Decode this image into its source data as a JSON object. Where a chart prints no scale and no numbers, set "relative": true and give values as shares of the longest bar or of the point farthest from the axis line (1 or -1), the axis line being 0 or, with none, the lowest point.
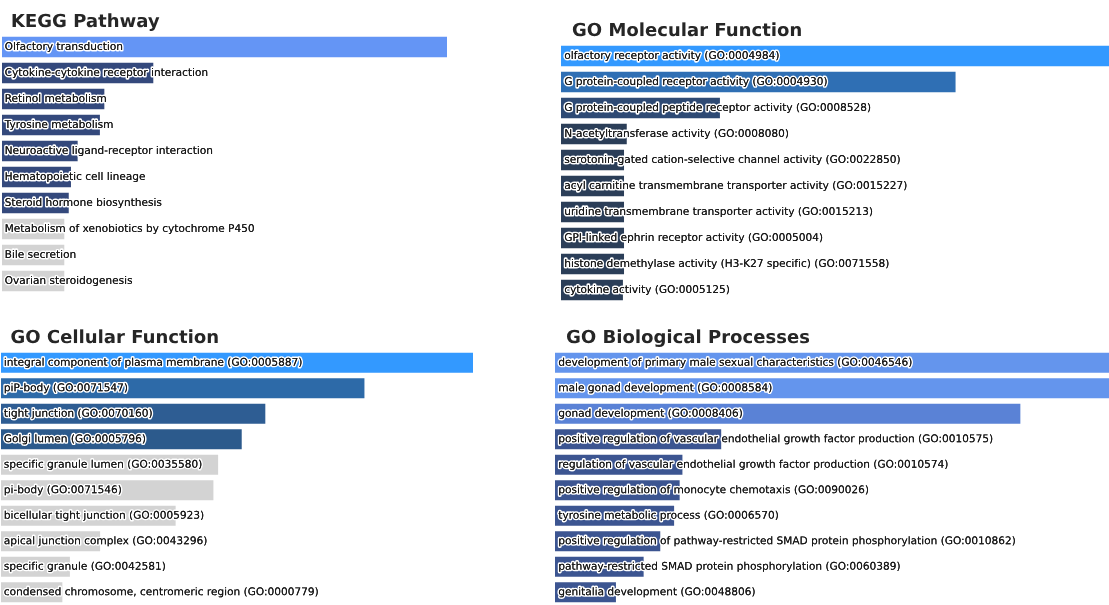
{
  "chart_data": [
    {
      "type": "bar",
      "orientation": "horizontal",
      "relative": true,
      "title": "KEGG Pathway",
      "categories": [
        "Olfactory transduction",
        "Cytokine-cytokine receptor interaction",
        "Retinol metabolism",
        "Tyrosine metabolism",
        "Neuroactive ligand-receptor interaction",
        "Hematopoietic cell lineage",
        "Steroid hormone biosynthesis",
        "Metabolism of xenobiotics by cytochrome P450",
        "Bile secretion",
        "Ovarian steroidogenesis"
      ],
      "values": [
        1,
        0.34,
        0.23,
        0.22,
        0.17,
        0.155,
        0.15,
        0.14,
        0.14,
        0.14
      ],
      "colors": [
        "#6495f5",
        "#34497c",
        "#34497c",
        "#34497c",
        "#34497c",
        "#34497c",
        "#34497c",
        "#d3d3d3",
        "#d3d3d3",
        "#d3d3d3"
      ]
    },
    {
      "type": "bar",
      "orientation": "horizontal",
      "relative": true,
      "title": "GO Molecular Function",
      "categories": [
        "olfactory receptor activity (GO:0004984)",
        "G protein-coupled receptor activity (GO:0004930)",
        "G protein-coupled peptide receptor activity (GO:0008528)",
        "N-acetyltransferase activity (GO:0008080)",
        "serotonin-gated cation-selective channel activity (GO:0022850)",
        "acyl carnitine transmembrane transporter activity (GO:0015227)",
        "uridine transmembrane transporter activity (GO:0015213)",
        "GPI-linked ephrin receptor activity (GO:0005004)",
        "histone demethylase activity (H3-K27 specific) (GO:0071558)",
        "cytokine activity (GO:0005125)"
      ],
      "values": [
        1,
        0.72,
        0.29,
        0.12,
        0.115,
        0.115,
        0.115,
        0.115,
        0.115,
        0.113
      ],
      "colors": [
        "#3399ff",
        "#2f6fb4",
        "#2e4a74",
        "#2b3e58",
        "#2b3e58",
        "#2b3e58",
        "#2b3e58",
        "#2b3e58",
        "#2b3e58",
        "#2b3e58"
      ]
    },
    {
      "type": "bar",
      "orientation": "horizontal",
      "relative": true,
      "title": "GO Cellular Function",
      "categories": [
        "integral component of plasma membrane (GO:0005887)",
        "piP-body (GO:0071547)",
        "tight junction (GO:0070160)",
        "Golgi lumen (GO:0005796)",
        "specific granule lumen (GO:0035580)",
        "pi-body (GO:0071546)",
        "bicellular tight junction (GO:0005923)",
        "apical junction complex (GO:0043296)",
        "specific granule (GO:0042581)",
        "condensed chromosome, centromeric region (GO:0000779)"
      ],
      "values": [
        1,
        0.77,
        0.56,
        0.51,
        0.46,
        0.45,
        0.37,
        0.21,
        0.146,
        0.13
      ],
      "colors": [
        "#3399ff",
        "#2d6aa8",
        "#2e5d93",
        "#2c5a8c",
        "#d3d3d3",
        "#d3d3d3",
        "#d3d3d3",
        "#d3d3d3",
        "#d3d3d3",
        "#d3d3d3"
      ]
    },
    {
      "type": "bar",
      "orientation": "horizontal",
      "relative": true,
      "title": "GO Biological Processes",
      "categories": [
        "development of primary male sexual characteristics (GO:0046546)",
        "male gonad development (GO:0008584)",
        "gonad development (GO:0008406)",
        "positive regulation of vascular endothelial growth factor production (GO:0010575)",
        "regulation of vascular endothelial growth factor production (GO:0010574)",
        "positive regulation of monocyte chemotaxis (GO:0090026)",
        "tyrosine metabolic process (GO:0006570)",
        "positive regulation of pathway-restricted SMAD protein phosphorylation (GO:0010862)",
        "pathway-restricted SMAD protein phosphorylation (GO:0060389)",
        "genitalia development (GO:0048806)"
      ],
      "values": [
        1,
        1,
        0.84,
        0.3,
        0.23,
        0.225,
        0.215,
        0.19,
        0.16,
        0.11
      ],
      "colors": [
        "#6495ed",
        "#6495ed",
        "#5a82d6",
        "#3c5591",
        "#3c5591",
        "#3c5591",
        "#3c5591",
        "#3c5591",
        "#3c5591",
        "#3c5591"
      ]
    }
  ]
}
